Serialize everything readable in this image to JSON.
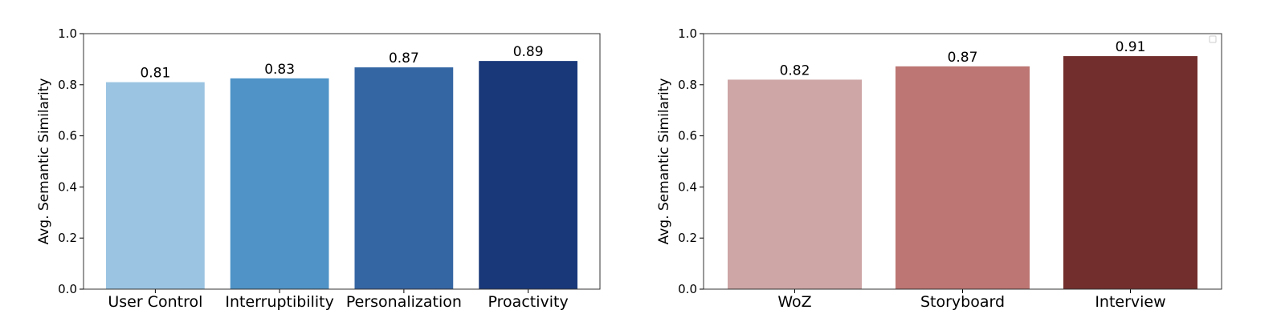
{
  "chart_data": [
    {
      "type": "bar",
      "categories": [
        "User Control",
        "Interruptibility",
        "Personalization",
        "Proactivity"
      ],
      "values": [
        0.81,
        0.825,
        0.868,
        0.893
      ],
      "value_labels": [
        "0.81",
        "0.83",
        "0.87",
        "0.89"
      ],
      "colors": [
        "#9bc4e2",
        "#4f93c7",
        "#3566a4",
        "#18387a"
      ],
      "xlabel": "",
      "ylabel": "Avg. Semantic Similarity",
      "ylim": [
        0,
        1.0
      ],
      "yticks": [
        "0.0",
        "0.2",
        "0.4",
        "0.6",
        "0.8",
        "1.0"
      ],
      "grid": false,
      "legend": "none"
    },
    {
      "type": "bar",
      "categories": [
        "WoZ",
        "Storyboard",
        "Interview"
      ],
      "values": [
        0.82,
        0.872,
        0.912
      ],
      "value_labels": [
        "0.82",
        "0.87",
        "0.91"
      ],
      "colors": [
        "#cda6a5",
        "#bd7673",
        "#722e2c"
      ],
      "xlabel": "",
      "ylabel": "Avg. Semantic Similarity",
      "ylim": [
        0,
        1.0
      ],
      "yticks": [
        "0.0",
        "0.2",
        "0.4",
        "0.6",
        "0.8",
        "1.0"
      ],
      "grid": false,
      "legend": "top-right (empty)"
    }
  ]
}
